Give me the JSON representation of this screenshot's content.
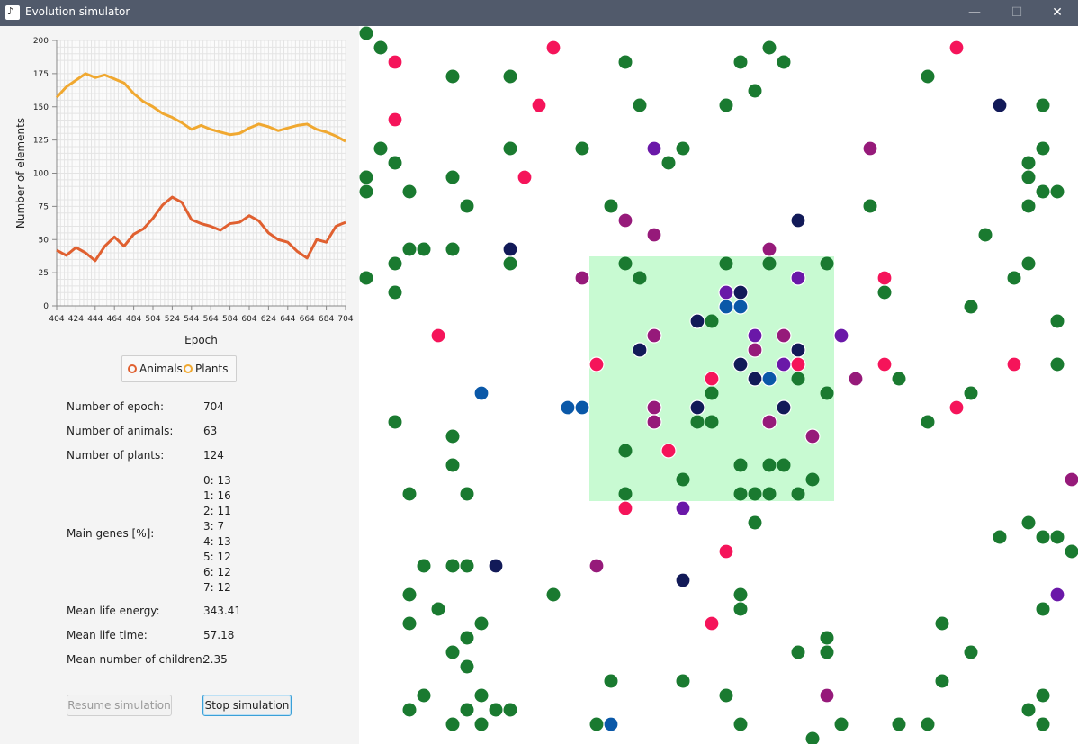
{
  "window": {
    "title": "Evolution simulator",
    "icon": "app-logo-icon",
    "controls": [
      "minimize-icon",
      "maximize-icon",
      "close-icon"
    ],
    "minimize": "—",
    "maximize": "☐",
    "close": "✕"
  },
  "chart_data": {
    "type": "line",
    "xlabel": "Epoch",
    "ylabel": "Number of elements",
    "xlim": [
      404,
      704
    ],
    "ylim": [
      0,
      200
    ],
    "x_ticks": [
      404,
      424,
      444,
      464,
      484,
      504,
      524,
      544,
      564,
      584,
      604,
      624,
      644,
      664,
      684,
      704
    ],
    "y_ticks": [
      0,
      25,
      50,
      75,
      100,
      125,
      150,
      175,
      200
    ],
    "grid": true,
    "legend_position": "bottom",
    "x": [
      404,
      414,
      424,
      434,
      444,
      454,
      464,
      474,
      484,
      494,
      504,
      514,
      524,
      534,
      544,
      554,
      564,
      574,
      584,
      594,
      604,
      614,
      624,
      634,
      644,
      654,
      664,
      674,
      684,
      694,
      704
    ],
    "series": [
      {
        "name": "Animals",
        "color": "#e06030",
        "values": [
          42,
          38,
          44,
          40,
          34,
          45,
          52,
          45,
          54,
          58,
          66,
          76,
          82,
          78,
          65,
          62,
          60,
          57,
          62,
          63,
          68,
          64,
          55,
          50,
          48,
          41,
          36,
          50,
          48,
          60,
          63
        ]
      },
      {
        "name": "Plants",
        "color": "#f0a830",
        "values": [
          157,
          165,
          170,
          175,
          172,
          174,
          171,
          168,
          160,
          154,
          150,
          145,
          142,
          138,
          133,
          136,
          133,
          131,
          129,
          130,
          134,
          137,
          135,
          132,
          134,
          136,
          137,
          133,
          131,
          128,
          124
        ]
      }
    ]
  },
  "stats": {
    "epoch_label": "Number of epoch:",
    "epoch": "704",
    "animals_label": "Number of animals:",
    "animals": "63",
    "plants_label": "Number of plants:",
    "plants": "124",
    "genes_label": "Main genes [%]:",
    "genes": [
      "0:  13",
      "1:  16",
      "2:  11",
      "3:  7",
      "4:  13",
      "5:  12",
      "6:  12",
      "7:  12"
    ],
    "energy_label": "Mean life energy:",
    "energy": "343.41",
    "life_label": "Mean life time:",
    "life": "57.18",
    "children_label": "Mean number of children:",
    "children": "2.35"
  },
  "buttons": {
    "resume": "Resume simulation",
    "stop": "Stop simulation"
  },
  "map": {
    "jungle_color": "#c8fad2",
    "plant_color": "#1a7a30",
    "plants": [
      [
        8,
        8
      ],
      [
        24,
        24
      ],
      [
        104,
        56
      ],
      [
        168,
        56
      ],
      [
        296,
        40
      ],
      [
        424,
        40
      ],
      [
        472,
        40
      ],
      [
        456,
        24
      ],
      [
        632,
        56
      ],
      [
        440,
        72
      ],
      [
        312,
        88
      ],
      [
        408,
        88
      ],
      [
        760,
        88
      ],
      [
        24,
        136
      ],
      [
        40,
        152
      ],
      [
        168,
        136
      ],
      [
        248,
        136
      ],
      [
        344,
        152
      ],
      [
        360,
        136
      ],
      [
        744,
        152
      ],
      [
        760,
        136
      ],
      [
        744,
        168
      ],
      [
        760,
        184
      ],
      [
        776,
        184
      ],
      [
        8,
        168
      ],
      [
        8,
        184
      ],
      [
        56,
        184
      ],
      [
        104,
        168
      ],
      [
        120,
        200
      ],
      [
        280,
        200
      ],
      [
        568,
        200
      ],
      [
        744,
        200
      ],
      [
        56,
        248
      ],
      [
        72,
        248
      ],
      [
        104,
        248
      ],
      [
        40,
        264
      ],
      [
        168,
        264
      ],
      [
        296,
        264
      ],
      [
        312,
        280
      ],
      [
        408,
        264
      ],
      [
        456,
        264
      ],
      [
        520,
        264
      ],
      [
        8,
        280
      ],
      [
        40,
        296
      ],
      [
        584,
        296
      ],
      [
        696,
        232
      ],
      [
        728,
        280
      ],
      [
        744,
        264
      ],
      [
        680,
        312
      ],
      [
        776,
        328
      ],
      [
        392,
        328
      ],
      [
        776,
        376
      ],
      [
        600,
        392
      ],
      [
        520,
        408
      ],
      [
        488,
        392
      ],
      [
        392,
        408
      ],
      [
        680,
        408
      ],
      [
        40,
        440
      ],
      [
        104,
        456
      ],
      [
        376,
        440
      ],
      [
        392,
        440
      ],
      [
        632,
        440
      ],
      [
        104,
        488
      ],
      [
        424,
        488
      ],
      [
        456,
        488
      ],
      [
        472,
        488
      ],
      [
        296,
        472
      ],
      [
        360,
        504
      ],
      [
        504,
        504
      ],
      [
        56,
        520
      ],
      [
        120,
        520
      ],
      [
        296,
        520
      ],
      [
        424,
        520
      ],
      [
        440,
        520
      ],
      [
        456,
        520
      ],
      [
        488,
        520
      ],
      [
        440,
        552
      ],
      [
        744,
        552
      ],
      [
        712,
        568
      ],
      [
        760,
        568
      ],
      [
        776,
        568
      ],
      [
        792,
        584
      ],
      [
        72,
        600
      ],
      [
        104,
        600
      ],
      [
        120,
        600
      ],
      [
        56,
        632
      ],
      [
        216,
        632
      ],
      [
        424,
        632
      ],
      [
        88,
        648
      ],
      [
        424,
        648
      ],
      [
        760,
        648
      ],
      [
        56,
        664
      ],
      [
        136,
        664
      ],
      [
        648,
        664
      ],
      [
        120,
        680
      ],
      [
        520,
        680
      ],
      [
        104,
        696
      ],
      [
        488,
        696
      ],
      [
        520,
        696
      ],
      [
        680,
        696
      ],
      [
        120,
        712
      ],
      [
        280,
        728
      ],
      [
        360,
        728
      ],
      [
        648,
        728
      ],
      [
        72,
        744
      ],
      [
        136,
        744
      ],
      [
        408,
        744
      ],
      [
        760,
        744
      ],
      [
        56,
        760
      ],
      [
        120,
        760
      ],
      [
        152,
        760
      ],
      [
        168,
        760
      ],
      [
        744,
        760
      ],
      [
        104,
        776
      ],
      [
        136,
        776
      ],
      [
        264,
        776
      ],
      [
        424,
        776
      ],
      [
        536,
        776
      ],
      [
        600,
        776
      ],
      [
        632,
        776
      ],
      [
        760,
        776
      ],
      [
        504,
        792
      ]
    ],
    "animals": [
      [
        40,
        40,
        "#f5145a"
      ],
      [
        216,
        24,
        "#f5145a"
      ],
      [
        664,
        24,
        "#f5145a"
      ],
      [
        200,
        88,
        "#f5145a"
      ],
      [
        40,
        104,
        "#f5145a"
      ],
      [
        184,
        168,
        "#f5145a"
      ],
      [
        328,
        136,
        "#6a18a8"
      ],
      [
        568,
        136,
        "#961a7a"
      ],
      [
        712,
        88,
        "#121a58"
      ],
      [
        296,
        216,
        "#961a7a"
      ],
      [
        328,
        232,
        "#961a7a"
      ],
      [
        488,
        216,
        "#121a58"
      ],
      [
        168,
        248,
        "#121a58"
      ],
      [
        456,
        248,
        "#961a7a"
      ],
      [
        248,
        280,
        "#961a7a"
      ],
      [
        488,
        280,
        "#6a18a8"
      ],
      [
        584,
        280,
        "#f5145a"
      ],
      [
        408,
        296,
        "#6a18a8"
      ],
      [
        424,
        296,
        "#121a58"
      ],
      [
        408,
        312,
        "#0a58a8"
      ],
      [
        424,
        312,
        "#0a58a8"
      ],
      [
        376,
        328,
        "#121a58"
      ],
      [
        88,
        344,
        "#f5145a"
      ],
      [
        328,
        344,
        "#961a7a"
      ],
      [
        312,
        360,
        "#121a58"
      ],
      [
        440,
        344,
        "#6a18a8"
      ],
      [
        472,
        344,
        "#961a7a"
      ],
      [
        440,
        360,
        "#961a7a"
      ],
      [
        488,
        360,
        "#121a58"
      ],
      [
        536,
        344,
        "#6a18a8"
      ],
      [
        264,
        376,
        "#f5145a"
      ],
      [
        424,
        376,
        "#121a58"
      ],
      [
        472,
        376,
        "#6a18a8"
      ],
      [
        488,
        376,
        "#f5145a"
      ],
      [
        584,
        376,
        "#f5145a"
      ],
      [
        728,
        376,
        "#f5145a"
      ],
      [
        392,
        392,
        "#f5145a"
      ],
      [
        440,
        392,
        "#121a58"
      ],
      [
        456,
        392,
        "#0a58a8"
      ],
      [
        552,
        392,
        "#961a7a"
      ],
      [
        136,
        408,
        "#0a58a8"
      ],
      [
        232,
        424,
        "#0a58a8"
      ],
      [
        248,
        424,
        "#0a58a8"
      ],
      [
        328,
        424,
        "#961a7a"
      ],
      [
        376,
        424,
        "#121a58"
      ],
      [
        472,
        424,
        "#121a58"
      ],
      [
        664,
        424,
        "#f5145a"
      ],
      [
        328,
        440,
        "#961a7a"
      ],
      [
        456,
        440,
        "#961a7a"
      ],
      [
        504,
        456,
        "#961a7a"
      ],
      [
        344,
        472,
        "#f5145a"
      ],
      [
        792,
        504,
        "#961a7a"
      ],
      [
        296,
        536,
        "#f5145a"
      ],
      [
        360,
        536,
        "#6a18a8"
      ],
      [
        408,
        584,
        "#f5145a"
      ],
      [
        152,
        600,
        "#121a58"
      ],
      [
        264,
        600,
        "#961a7a"
      ],
      [
        360,
        616,
        "#121a58"
      ],
      [
        776,
        632,
        "#6a18a8"
      ],
      [
        392,
        664,
        "#f5145a"
      ],
      [
        520,
        744,
        "#961a7a"
      ],
      [
        280,
        776,
        "#0a58a8"
      ]
    ]
  }
}
